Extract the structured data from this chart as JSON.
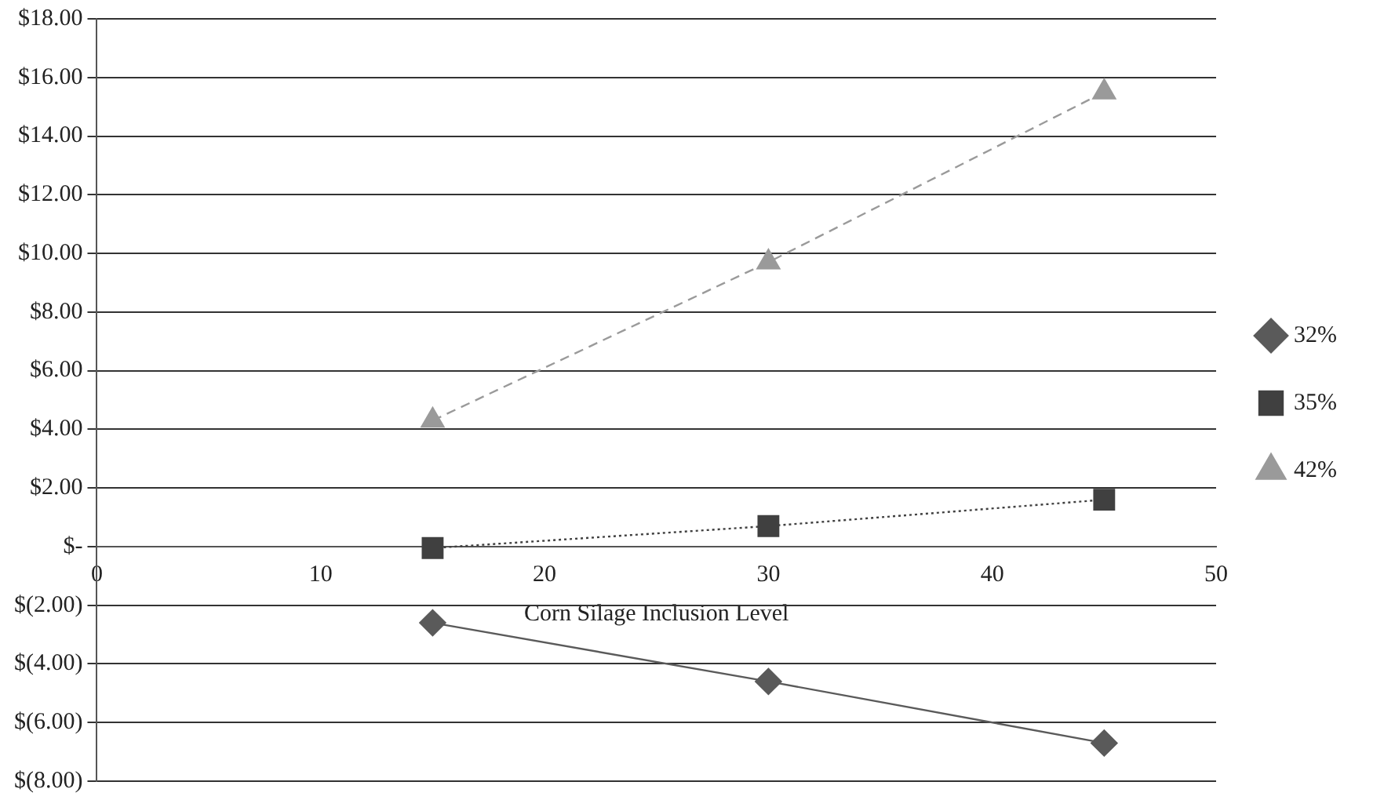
{
  "chart_data": {
    "type": "line",
    "xlabel": "Corn Silage Inclusion Level",
    "x": [
      15,
      30,
      45
    ],
    "series": [
      {
        "name": "32%",
        "color": "#5a5a5a",
        "values": [
          -2.6,
          -4.6,
          -6.7
        ],
        "marker": "diamond",
        "line_style": "solid"
      },
      {
        "name": "35%",
        "color": "#404040",
        "values": [
          -0.05,
          0.7,
          1.6
        ],
        "marker": "square",
        "line_style": "dotted"
      },
      {
        "name": "42%",
        "color": "#9a9a9a",
        "values": [
          4.3,
          9.7,
          15.5
        ],
        "marker": "triangle",
        "line_style": "dashed"
      }
    ],
    "xlim": [
      0,
      50
    ],
    "xticks": [
      0,
      10,
      20,
      30,
      40,
      50
    ],
    "ylim": [
      -8,
      18
    ],
    "yticks": [
      {
        "value": -8,
        "label": "$(8.00)"
      },
      {
        "value": -6,
        "label": "$(6.00)"
      },
      {
        "value": -4,
        "label": "$(4.00)"
      },
      {
        "value": -2,
        "label": "$(2.00)"
      },
      {
        "value": 0,
        "label": "$-"
      },
      {
        "value": 2,
        "label": "$2.00"
      },
      {
        "value": 4,
        "label": "$4.00"
      },
      {
        "value": 6,
        "label": "$6.00"
      },
      {
        "value": 8,
        "label": "$8.00"
      },
      {
        "value": 10,
        "label": "$10.00"
      },
      {
        "value": 12,
        "label": "$12.00"
      },
      {
        "value": 14,
        "label": "$14.00"
      },
      {
        "value": 16,
        "label": "$16.00"
      },
      {
        "value": 18,
        "label": "$18.00"
      }
    ],
    "grid": "y",
    "legend": "right"
  }
}
